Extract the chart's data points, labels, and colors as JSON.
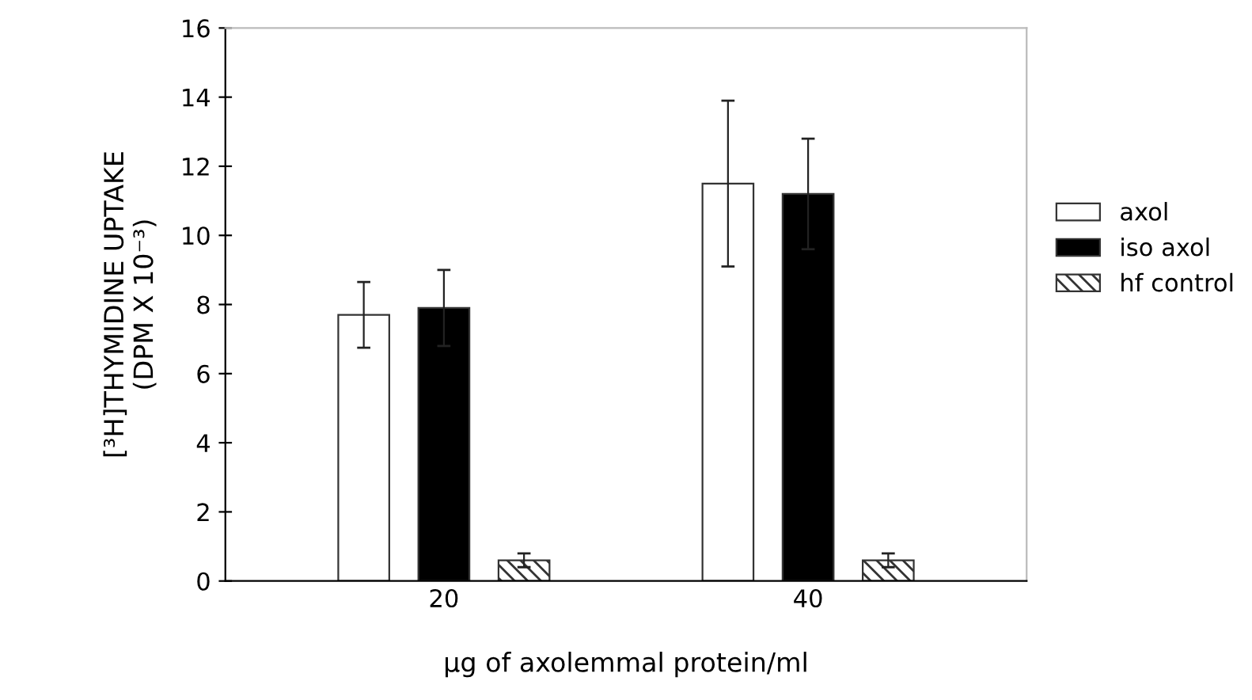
{
  "chart_data": {
    "type": "bar",
    "xlabel": "μg of axolemmal protein/ml",
    "ylabel": "[³H]THYMIDINE UPTAKE\n(DPM X 10⁻³)",
    "categories": [
      "20",
      "40"
    ],
    "series": [
      {
        "name": "axol",
        "color": "#ffffff",
        "values": [
          7.7,
          11.5
        ],
        "errors": [
          0.95,
          2.4
        ]
      },
      {
        "name": "iso axol",
        "color": "#000000",
        "values": [
          7.9,
          11.2
        ],
        "errors": [
          1.1,
          1.6
        ]
      },
      {
        "name": "hf control",
        "color": "#333333",
        "values": [
          0.6,
          0.6
        ],
        "errors": [
          0.2,
          0.2
        ]
      }
    ],
    "ylim": [
      0,
      16
    ],
    "yticks": [
      0,
      2,
      4,
      6,
      8,
      10,
      12,
      14,
      16
    ],
    "grid": false,
    "legend": "right"
  }
}
